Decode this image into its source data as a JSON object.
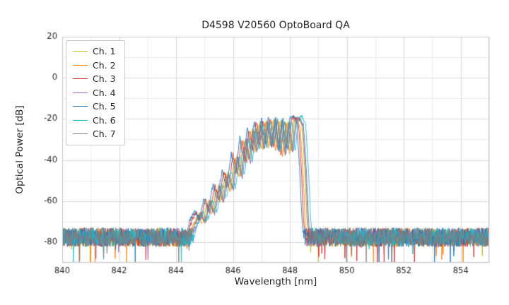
{
  "chart_data": {
    "type": "line",
    "title": "D4598 V20560 OptoBoard QA",
    "xlabel": "Wavelength [nm]",
    "ylabel": "Optical Power [dB]",
    "xlim": [
      840,
      855
    ],
    "ylim": [
      -90,
      20
    ],
    "xticks": [
      840,
      842,
      844,
      846,
      848,
      850,
      852,
      854
    ],
    "yticks": [
      20,
      0,
      -20,
      -40,
      -60,
      -80
    ],
    "x_minor_step": 1,
    "y_minor_step": 10,
    "grid": true,
    "legend_position": "upper-left",
    "noise_floor_db": -78,
    "noise_band_db": [
      -73,
      -88
    ],
    "peak_region_nm": [
      844.5,
      848.6
    ],
    "peak_power_db": -20,
    "series": [
      {
        "name": "Ch. 1",
        "color": "#bcbd22",
        "dx": 0.0,
        "dy": 0.0,
        "seed": 11
      },
      {
        "name": "Ch. 2",
        "color": "#ff7f0e",
        "dx": -0.06,
        "dy": -1.0,
        "seed": 23
      },
      {
        "name": "Ch. 3",
        "color": "#d62728",
        "dx": -0.12,
        "dy": 0.5,
        "seed": 37
      },
      {
        "name": "Ch. 4",
        "color": "#9467bd",
        "dx": 0.06,
        "dy": -0.5,
        "seed": 51
      },
      {
        "name": "Ch. 5",
        "color": "#1f77b4",
        "dx": -0.18,
        "dy": 1.0,
        "seed": 67
      },
      {
        "name": "Ch. 6",
        "color": "#17becf",
        "dx": 0.13,
        "dy": 0.5,
        "seed": 83
      },
      {
        "name": "Ch. 7",
        "color": "#7f7f7f",
        "dx": 0.03,
        "dy": 0.0,
        "seed": 97
      }
    ],
    "base_envelope": [
      [
        844.4,
        -85
      ],
      [
        844.62,
        -72
      ],
      [
        844.82,
        -66
      ],
      [
        844.98,
        -70
      ],
      [
        845.15,
        -60
      ],
      [
        845.3,
        -66
      ],
      [
        845.48,
        -53
      ],
      [
        845.62,
        -60
      ],
      [
        845.8,
        -46
      ],
      [
        845.95,
        -54
      ],
      [
        846.12,
        -38
      ],
      [
        846.27,
        -48
      ],
      [
        846.42,
        -30
      ],
      [
        846.55,
        -41
      ],
      [
        846.68,
        -25
      ],
      [
        846.8,
        -36
      ],
      [
        846.93,
        -22
      ],
      [
        847.05,
        -34
      ],
      [
        847.18,
        -21
      ],
      [
        847.3,
        -33
      ],
      [
        847.43,
        -20
      ],
      [
        847.55,
        -35
      ],
      [
        847.68,
        -20.5
      ],
      [
        847.8,
        -37
      ],
      [
        847.93,
        -21
      ],
      [
        848.05,
        -36
      ],
      [
        848.18,
        -20
      ],
      [
        848.3,
        -19.5
      ],
      [
        848.42,
        -23
      ],
      [
        848.52,
        -45
      ],
      [
        848.6,
        -70
      ],
      [
        848.7,
        -85
      ]
    ],
    "style": {
      "grid_major_color": "#d9d9d9",
      "grid_minor_color": "#ebebeb",
      "spine_color": "#c8c8c8",
      "tick_label_color": "#262626",
      "background": "#ffffff"
    }
  }
}
